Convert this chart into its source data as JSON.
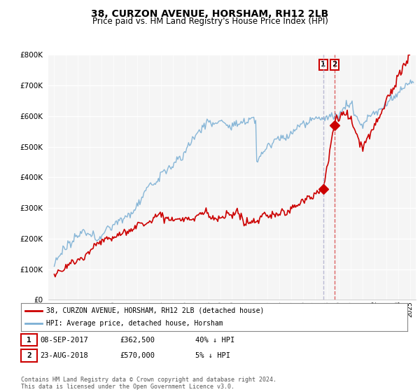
{
  "title": "38, CURZON AVENUE, HORSHAM, RH12 2LB",
  "subtitle": "Price paid vs. HM Land Registry's House Price Index (HPI)",
  "ylim": [
    0,
    800000
  ],
  "xlim_start": 1994.5,
  "xlim_end": 2025.5,
  "hpi_color": "#7bafd4",
  "price_color": "#cc0000",
  "sale1_vline_color": "#aaaacc",
  "sale2_vline_color": "#cc0000",
  "sale1_date": "08-SEP-2017",
  "sale1_price": "£362,500",
  "sale1_pct": "40% ↓ HPI",
  "sale1_year": 2017.69,
  "sale1_value": 362500,
  "sale2_date": "23-AUG-2018",
  "sale2_price": "£570,000",
  "sale2_pct": "5% ↓ HPI",
  "sale2_year": 2018.64,
  "sale2_value": 570000,
  "legend1": "38, CURZON AVENUE, HORSHAM, RH12 2LB (detached house)",
  "legend2": "HPI: Average price, detached house, Horsham",
  "footer": "Contains HM Land Registry data © Crown copyright and database right 2024.\nThis data is licensed under the Open Government Licence v3.0.",
  "bg_color": "#ffffff",
  "plot_bg_color": "#f5f5f5",
  "grid_color": "#ffffff"
}
